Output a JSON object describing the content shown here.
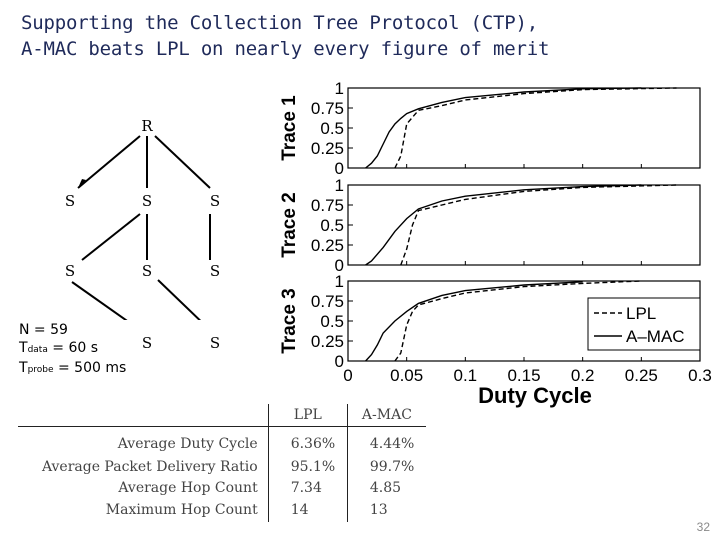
{
  "title": {
    "line1": "Supporting the Collection Tree Protocol (CTP),",
    "line2": "A-MAC beats LPL on nearly every figure of merit"
  },
  "tree": {
    "root_label": "R",
    "node_label": "S"
  },
  "params": {
    "n": "N = 59",
    "tdata_prefix": "T",
    "tdata_sub": "data",
    "tdata_value": " = 60 s",
    "tprobe_prefix": "T",
    "tprobe_sub": "probe",
    "tprobe_value": " = 500 ms"
  },
  "chart_data": {
    "type": "line",
    "xlabel": "Duty Cycle",
    "xlim": [
      0,
      0.3
    ],
    "xticks": [
      "0",
      "0.05",
      "0.1",
      "0.15",
      "0.2",
      "0.25",
      "0.3"
    ],
    "ylim": [
      0,
      1
    ],
    "yticks": [
      "0",
      "0.25",
      "0.5",
      "0.75",
      "1"
    ],
    "legend": {
      "position": "bottom-right",
      "entries": [
        "LPL",
        "A–MAC"
      ]
    },
    "colors": {
      "lpl": "#000000",
      "amac": "#000000"
    },
    "panels": [
      {
        "title": "Trace 1",
        "series": [
          {
            "name": "A-MAC",
            "style": "solid",
            "points": [
              [
                0.015,
                0
              ],
              [
                0.02,
                0.06
              ],
              [
                0.025,
                0.15
              ],
              [
                0.03,
                0.3
              ],
              [
                0.035,
                0.45
              ],
              [
                0.04,
                0.55
              ],
              [
                0.045,
                0.62
              ],
              [
                0.05,
                0.68
              ],
              [
                0.06,
                0.74
              ],
              [
                0.08,
                0.82
              ],
              [
                0.1,
                0.88
              ],
              [
                0.15,
                0.95
              ],
              [
                0.2,
                0.99
              ],
              [
                0.25,
                1.0
              ]
            ]
          },
          {
            "name": "LPL",
            "style": "dashed",
            "points": [
              [
                0.04,
                0
              ],
              [
                0.045,
                0.15
              ],
              [
                0.05,
                0.55
              ],
              [
                0.06,
                0.72
              ],
              [
                0.08,
                0.78
              ],
              [
                0.1,
                0.85
              ],
              [
                0.15,
                0.93
              ],
              [
                0.2,
                0.98
              ],
              [
                0.28,
                1.0
              ]
            ]
          }
        ]
      },
      {
        "title": "Trace 2",
        "series": [
          {
            "name": "A-MAC",
            "style": "solid",
            "points": [
              [
                0.015,
                0
              ],
              [
                0.02,
                0.05
              ],
              [
                0.03,
                0.22
              ],
              [
                0.04,
                0.42
              ],
              [
                0.05,
                0.58
              ],
              [
                0.06,
                0.7
              ],
              [
                0.08,
                0.8
              ],
              [
                0.1,
                0.86
              ],
              [
                0.15,
                0.94
              ],
              [
                0.2,
                0.98
              ],
              [
                0.25,
                1.0
              ]
            ]
          },
          {
            "name": "LPL",
            "style": "dashed",
            "points": [
              [
                0.045,
                0
              ],
              [
                0.05,
                0.2
              ],
              [
                0.055,
                0.5
              ],
              [
                0.06,
                0.68
              ],
              [
                0.08,
                0.75
              ],
              [
                0.1,
                0.82
              ],
              [
                0.15,
                0.92
              ],
              [
                0.2,
                0.97
              ],
              [
                0.28,
                1.0
              ]
            ]
          }
        ]
      },
      {
        "title": "Trace 3",
        "series": [
          {
            "name": "A-MAC",
            "style": "solid",
            "points": [
              [
                0.015,
                0
              ],
              [
                0.02,
                0.08
              ],
              [
                0.025,
                0.2
              ],
              [
                0.03,
                0.35
              ],
              [
                0.04,
                0.5
              ],
              [
                0.05,
                0.62
              ],
              [
                0.06,
                0.72
              ],
              [
                0.08,
                0.82
              ],
              [
                0.1,
                0.88
              ],
              [
                0.15,
                0.95
              ],
              [
                0.2,
                0.99
              ]
            ]
          },
          {
            "name": "LPL",
            "style": "dashed",
            "points": [
              [
                0.04,
                0
              ],
              [
                0.045,
                0.1
              ],
              [
                0.05,
                0.45
              ],
              [
                0.055,
                0.62
              ],
              [
                0.06,
                0.7
              ],
              [
                0.08,
                0.78
              ],
              [
                0.1,
                0.85
              ],
              [
                0.15,
                0.93
              ],
              [
                0.2,
                0.97
              ],
              [
                0.25,
                1.0
              ]
            ]
          }
        ]
      }
    ]
  },
  "table": {
    "headers": [
      "",
      "LPL",
      "A-MAC"
    ],
    "rows": [
      [
        "Average Duty Cycle",
        "6.36%",
        "4.44%"
      ],
      [
        "Average Packet Delivery Ratio",
        "95.1%",
        "99.7%"
      ],
      [
        "Average Hop Count",
        "7.34",
        "4.85"
      ],
      [
        "Maximum Hop Count",
        "14",
        "13"
      ]
    ]
  },
  "page_number": "32"
}
